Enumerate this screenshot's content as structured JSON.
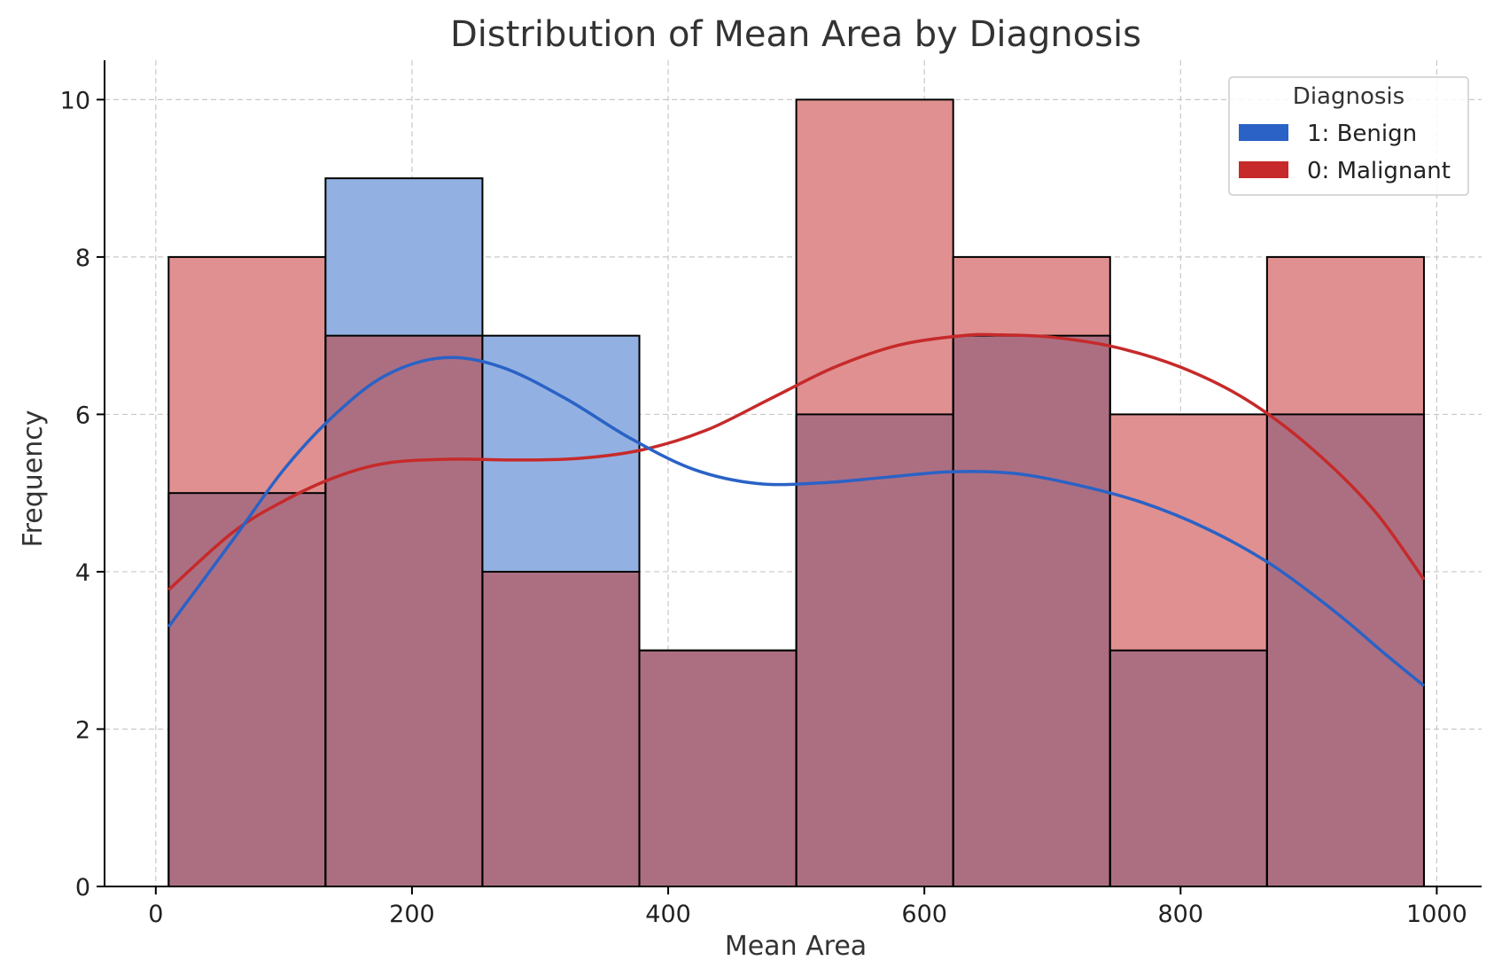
{
  "chart_data": {
    "type": "bar",
    "title": "Distribution of Mean Area by Diagnosis",
    "xlabel": "Mean Area",
    "ylabel": "Frequency",
    "xlim": [
      -40,
      1035
    ],
    "ylim": [
      0,
      10.5
    ],
    "xticks": [
      0,
      200,
      400,
      600,
      800,
      1000
    ],
    "yticks": [
      0,
      2,
      4,
      6,
      8,
      10
    ],
    "grid": true,
    "legend": {
      "title": "Diagnosis",
      "placement": "top-right",
      "entries": [
        {
          "label": "1: Benign",
          "color": "#2a62c6"
        },
        {
          "label": "0: Malignant",
          "color": "#c62a2a"
        }
      ]
    },
    "bin_edges": [
      10,
      132.5,
      255,
      377.5,
      500,
      622.5,
      745,
      867.5,
      990
    ],
    "series": [
      {
        "name": "1: Benign",
        "color": "#2a62c6",
        "fill": "#92b1e2",
        "values": [
          5,
          9,
          7,
          3,
          6,
          7,
          3,
          6
        ],
        "kde": {
          "x": [
            10,
            60,
            100,
            140,
            180,
            225,
            270,
            320,
            370,
            420,
            470,
            520,
            570,
            620,
            670,
            720,
            770,
            820,
            870,
            920,
            960,
            990
          ],
          "y": [
            3.3,
            4.4,
            5.3,
            6.0,
            6.5,
            6.72,
            6.6,
            6.2,
            5.7,
            5.3,
            5.12,
            5.13,
            5.2,
            5.27,
            5.25,
            5.1,
            4.88,
            4.55,
            4.1,
            3.5,
            2.95,
            2.55
          ]
        }
      },
      {
        "name": "0: Malignant",
        "color": "#c62a2a",
        "fill": "#e09090",
        "values": [
          8,
          7,
          4,
          3,
          10,
          8,
          6,
          8
        ],
        "kde": {
          "x": [
            10,
            60,
            100,
            140,
            180,
            230,
            280,
            330,
            380,
            430,
            480,
            530,
            580,
            630,
            660,
            700,
            750,
            800,
            850,
            900,
            950,
            990
          ],
          "y": [
            3.77,
            4.5,
            4.9,
            5.2,
            5.38,
            5.43,
            5.42,
            5.44,
            5.55,
            5.8,
            6.2,
            6.6,
            6.88,
            7.0,
            7.01,
            6.98,
            6.85,
            6.6,
            6.2,
            5.6,
            4.8,
            3.9
          ]
        }
      }
    ],
    "overlap_color": "#ac6f82"
  }
}
